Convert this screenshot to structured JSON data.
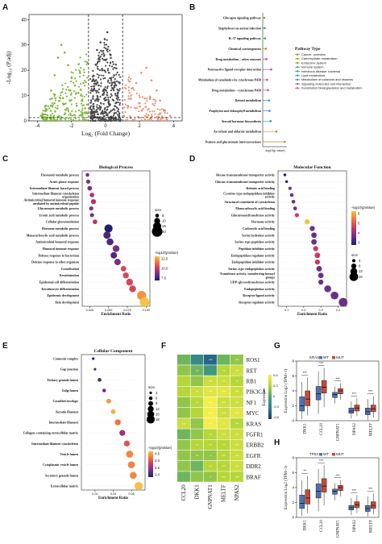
{
  "panel_letters": [
    "A",
    "B",
    "C",
    "D",
    "E",
    "F",
    "G",
    "H"
  ],
  "volcano": {
    "xlabel": "Log₂ (Fold Change)",
    "ylabel": "-Log₁₀ (P.adj)",
    "xticks": [
      "-4",
      "-2",
      "0",
      "2",
      "4"
    ],
    "yticks": [
      "0",
      "10",
      "20",
      "30",
      "40"
    ],
    "colors": {
      "down": "#7fb83a",
      "ns": "#4a4a4a",
      "up": "#e3957a"
    }
  },
  "pathway_legend": {
    "title": "Pathway Type",
    "items": [
      {
        "label": "Cancer: overview",
        "color": "#c47c2a"
      },
      {
        "label": "Carbohydrate metabolism",
        "color": "#b5902a"
      },
      {
        "label": "Endocrine system",
        "color": "#8aa33a"
      },
      {
        "label": "Immune system",
        "color": "#4aa84a"
      },
      {
        "label": "Infectious disease: bacterial",
        "color": "#2aa88a"
      },
      {
        "label": "Lipid metabolism",
        "color": "#2a9fc0"
      },
      {
        "label": "Metabolism of cofactors and vitamins",
        "color": "#3a7fd0"
      },
      {
        "label": "Signaling molecules and interaction",
        "color": "#8a5ad0"
      },
      {
        "label": "Xenobiotics biodegradation and metabolism",
        "color": "#d04aa0"
      }
    ]
  },
  "chart_data": [
    {
      "panel": "A",
      "type": "scatter",
      "title": "",
      "xlabel": "Log2 (Fold Change)",
      "ylabel": "-Log10 (P.adj)",
      "xlim": [
        -4.5,
        4.5
      ],
      "ylim": [
        0,
        42
      ],
      "thresholds": {
        "x": [
          -1,
          1
        ],
        "y": 1.3
      },
      "series": [
        {
          "name": "down",
          "points": [
            [
              -3.8,
              2
            ],
            [
              -3.5,
              6
            ],
            [
              -3.2,
              12
            ],
            [
              -3,
              18
            ],
            [
              -2.8,
              25
            ],
            [
              -2.6,
              30
            ],
            [
              -2.4,
              27
            ],
            [
              -2.2,
              22
            ],
            [
              -2,
              17
            ],
            [
              -1.8,
              14
            ],
            [
              -1.6,
              11
            ],
            [
              -1.4,
              8
            ],
            [
              -1.2,
              5
            ],
            [
              -1.1,
              3
            ],
            [
              -2.5,
              9
            ],
            [
              -3,
              7
            ],
            [
              -1.5,
              19
            ],
            [
              -2.1,
              12
            ],
            [
              -1.3,
              15
            ],
            [
              -1.7,
              6
            ]
          ]
        },
        {
          "name": "ns",
          "points": [
            [
              -0.8,
              3
            ],
            [
              -0.6,
              8
            ],
            [
              -0.4,
              14
            ],
            [
              -0.2,
              20
            ],
            [
              0,
              24
            ],
            [
              0.2,
              19
            ],
            [
              0.4,
              13
            ],
            [
              0.6,
              7
            ],
            [
              0.8,
              2
            ],
            [
              -0.5,
              28
            ],
            [
              0.1,
              35
            ],
            [
              0.3,
              26
            ],
            [
              -0.3,
              31
            ],
            [
              0.5,
              18
            ],
            [
              0.7,
              10
            ],
            [
              -0.7,
              12
            ]
          ]
        },
        {
          "name": "up",
          "points": [
            [
              1.1,
              2
            ],
            [
              1.3,
              6
            ],
            [
              1.5,
              10
            ],
            [
              1.8,
              15
            ],
            [
              2.1,
              19
            ],
            [
              2.4,
              21
            ],
            [
              2.7,
              16
            ],
            [
              3,
              12
            ],
            [
              3.2,
              8
            ],
            [
              3.5,
              4
            ],
            [
              3.8,
              2
            ],
            [
              2,
              7
            ],
            [
              1.6,
              13
            ],
            [
              2.6,
              9
            ]
          ]
        }
      ]
    },
    {
      "panel": "B",
      "type": "lollipop",
      "xlabel": "-log10(p.value)",
      "categories": [
        "Glucagon signaling pathway",
        "Staphylococcus aureus infection",
        "IL-17 signaling pathway",
        "Chemical carcinogenesis",
        "Drug metabolism – other enzymes",
        "Neuroactive ligand–receptor interaction",
        "Metabolism of xenobiotics by cytochrome P450",
        "Drug metabolism – cytochrome P450",
        "Retinol metabolism",
        "Porphyrin and chlorophyll metabolism",
        "Steroid hormone biosynthesis",
        "Ascorbate and aldarate metabolism",
        "Pentose and glucuronate interconversions"
      ],
      "values": [
        1.35,
        1.38,
        1.42,
        1.5,
        1.55,
        2.0,
        1.62,
        1.7,
        1.8,
        1.85,
        1.95,
        2.5,
        3.3
      ],
      "types": [
        2,
        4,
        3,
        0,
        8,
        7,
        8,
        8,
        5,
        6,
        5,
        1,
        1
      ],
      "xlim": [
        1.2,
        3.5
      ]
    },
    {
      "panel": "C",
      "type": "bubble",
      "title": "Biological Process",
      "xlabel": "Enrichment Ratio",
      "xticks": [
        "0.025",
        "0.050",
        "0.075",
        "0.100"
      ],
      "xlim": [
        0.015,
        0.105
      ],
      "categories": [
        "Flavonoid metabolic process",
        "Acute–phase response",
        "Intermediate filament–based process",
        "Intermediate filament cytoskeleton organization",
        "Antimicrobial humoral immune response mediated by antimicrobial peptide",
        "Glucuronate metabolic process",
        "Uronic acid metabolic process",
        "Cellular glucuronidation",
        "Hormone metabolic process",
        "Monocarboxylic acid metabolic process",
        "Antimicrobial humoral response",
        "Humoral immune response",
        "Defense response to bacterium",
        "Defense response to other organism",
        "Cornification",
        "Keratinization",
        "Epidermal cell differentiation",
        "Keratinocyte differentiation",
        "Epidermis development",
        "Skin development"
      ],
      "x": [
        0.022,
        0.023,
        0.025,
        0.028,
        0.03,
        0.027,
        0.028,
        0.032,
        0.05,
        0.048,
        0.052,
        0.06,
        0.057,
        0.062,
        0.07,
        0.073,
        0.078,
        0.082,
        0.094,
        0.098
      ],
      "size": [
        5,
        6,
        7,
        7,
        8,
        6,
        6,
        7,
        15,
        13,
        12,
        12,
        11,
        11,
        9,
        10,
        12,
        12,
        17,
        18
      ],
      "color": [
        9,
        9,
        9,
        10,
        10,
        9,
        9,
        10,
        7,
        8,
        8,
        9,
        8,
        9,
        11,
        11,
        11,
        11,
        13,
        14
      ],
      "size_legend": {
        "title": "size",
        "values": [
          "5",
          "10",
          "15",
          "20"
        ]
      },
      "color_legend": {
        "title": "-log10(pValue)",
        "ticks": [
          "12.5",
          "10.0",
          "7.5"
        ]
      }
    },
    {
      "panel": "D",
      "type": "bubble",
      "title": "Molecular Function",
      "xlabel": "Enrichment Ratio",
      "xticks": [
        "0.1",
        "0.2",
        "0.3",
        "0.4"
      ],
      "xlim": [
        0.05,
        0.45
      ],
      "categories": [
        "Hexose transmembrane transporter activity",
        "Glucose transmembrane transporter activity",
        "Retinoic acid binding",
        "Cysteine–type endopeptidase inhibitor activity",
        "Structural constituent of cytoskeleton",
        "Monocarboxylic acid binding",
        "Glucuronosyltransferase activity",
        "Hormone activity",
        "Carboxylic acid binding",
        "Serine hydrolase activity",
        "Serine–type peptidase activity",
        "Peptidase inhibitor activity",
        "Endopeptidase regulator activity",
        "Endopeptidase inhibitor activity",
        "Serine–type endopeptidase activity",
        "Transferase activity, transferring hexosyl groups",
        "UDP–glycosyltransferase activity",
        "Endopeptidase activity",
        "Receptor ligand activity",
        "Receptor regulator activity"
      ],
      "x": [
        0.09,
        0.1,
        0.12,
        0.13,
        0.14,
        0.15,
        0.16,
        0.22,
        0.25,
        0.26,
        0.26,
        0.27,
        0.28,
        0.28,
        0.29,
        0.3,
        0.3,
        0.34,
        0.38,
        0.43
      ],
      "size": [
        3,
        3,
        4,
        5,
        5,
        5,
        6,
        8,
        8,
        9,
        9,
        8,
        9,
        8,
        9,
        9,
        8,
        12,
        14,
        16
      ],
      "color": [
        2,
        2,
        3,
        3,
        3,
        3,
        4,
        6,
        3,
        3,
        3,
        4,
        4,
        4,
        3,
        3,
        3,
        3,
        3,
        3
      ],
      "size_legend": {
        "title": "size",
        "values": [
          "4",
          "8",
          "12",
          "16"
        ]
      },
      "color_legend": {
        "title": "-log10(pValue)",
        "ticks": [
          "6",
          "5",
          "4",
          "3"
        ]
      }
    },
    {
      "panel": "E",
      "type": "bubble",
      "title": "Cellular Component",
      "xlabel": "Enrichment Ratio",
      "xticks": [
        "0.02",
        "0.04",
        "0.06"
      ],
      "xlim": [
        0.005,
        0.075
      ],
      "categories": [
        "Connexin complex",
        "Gap junction",
        "Tertiary granule lumen",
        "Golgi lumen",
        "Cornified envelope",
        "Keratin filament",
        "Intermediate filament",
        "Collagen–containing extracellular matrix",
        "Intermediate filament cytoskeleton",
        "Vesicle lumen",
        "Cytoplasmic vesicle lumen",
        "Secretory granule lumen",
        "Extracellular matrix"
      ],
      "x": [
        0.018,
        0.02,
        0.025,
        0.03,
        0.035,
        0.04,
        0.045,
        0.05,
        0.055,
        0.058,
        0.06,
        0.062,
        0.068
      ],
      "size": [
        3,
        3,
        6,
        6,
        9,
        9,
        12,
        12,
        12,
        15,
        15,
        15,
        18
      ],
      "color": [
        3.0,
        3.2,
        3.2,
        3.4,
        4.4,
        4.5,
        4.2,
        3.6,
        4.0,
        4.3,
        4.3,
        4.3,
        4.6
      ],
      "size_legend": {
        "title": "size",
        "values": [
          "3",
          "6",
          "9",
          "12",
          "15",
          "18"
        ]
      },
      "color_legend": {
        "title": "-log10(pValue)",
        "ticks": [
          "4.5",
          "4.0",
          "3.5",
          "3.0"
        ]
      }
    },
    {
      "panel": "F",
      "type": "heatmap",
      "rows": [
        "ROS1",
        "RET",
        "RB1",
        "PIK3CA",
        "NF1",
        "MYC",
        "KRAS",
        "FGFR1",
        "ERBB2",
        "EGFR",
        "DDR2",
        "BRAF"
      ],
      "columns": [
        "CCL20",
        "DKK1",
        "GNPNAT1",
        "MELTF",
        "NPAS2"
      ],
      "values": [
        [
          0.1,
          -0.2,
          -0.4,
          0.1,
          0.2
        ],
        [
          0.2,
          0.1,
          -0.1,
          0.3,
          0.4
        ],
        [
          0.3,
          0.2,
          0.4,
          0.4,
          0.3
        ],
        [
          0.3,
          0.4,
          0.5,
          0.5,
          0.4
        ],
        [
          0.2,
          0.3,
          0.6,
          0.4,
          0.4
        ],
        [
          0.2,
          0.3,
          0.6,
          0.4,
          0.5
        ],
        [
          0.4,
          0.2,
          0.7,
          0.5,
          0.3
        ],
        [
          0.1,
          0.2,
          0.3,
          0.4,
          0.4
        ],
        [
          0.2,
          0.3,
          0.3,
          0.3,
          0.4
        ],
        [
          0.2,
          0.2,
          0.2,
          0.3,
          0.4
        ],
        [
          0.2,
          0.1,
          0.3,
          0.3,
          0.4
        ],
        [
          0.1,
          0.2,
          0.2,
          0.3,
          0.3
        ]
      ],
      "stars": [
        [
          "",
          "",
          "***",
          "",
          "***"
        ],
        [
          "",
          "**",
          "",
          "**",
          "***"
        ],
        [
          "",
          "",
          "***",
          "**",
          "**"
        ],
        [
          "",
          "**",
          "***",
          "***",
          "***"
        ],
        [
          "",
          "**",
          "***",
          "***",
          "***"
        ],
        [
          "",
          "",
          "***",
          "***",
          "***"
        ],
        [
          "***",
          "",
          "***",
          "**",
          "***"
        ],
        [
          "",
          "",
          "**",
          "***",
          "***"
        ],
        [
          "",
          "**",
          "**",
          "**",
          "***"
        ],
        [
          "",
          "**",
          "*",
          "***",
          "***"
        ],
        [
          "",
          "",
          "**",
          "***",
          "***"
        ],
        [
          "",
          "",
          "*",
          "***",
          "***"
        ]
      ],
      "colorbar": {
        "title": "Expression",
        "ticks": [
          "0.6",
          "0.3",
          "0",
          "-0.3",
          "-0.6"
        ]
      }
    },
    {
      "panel": "G",
      "type": "box",
      "title": "KRAS",
      "ylabel": "Expression Log2 (TPM+1)",
      "legend": [
        "WT",
        "MUT"
      ],
      "categories": [
        "DKK1",
        "CCL20",
        "GNPNAT1",
        "NPAS2",
        "MELTF"
      ],
      "significance": [
        "***",
        "***",
        "***",
        "***",
        "***"
      ],
      "series": [
        {
          "name": "WT",
          "median": [
            2.0,
            3.6,
            3.5,
            1.3,
            1.2
          ],
          "q1": [
            1.3,
            2.8,
            3.1,
            1.0,
            0.8
          ],
          "q3": [
            3.2,
            4.6,
            3.8,
            1.7,
            1.7
          ],
          "min": [
            0.2,
            0.9,
            2.3,
            0.3,
            0.1
          ],
          "max": [
            5.2,
            6.6,
            4.6,
            2.6,
            2.9
          ]
        },
        {
          "name": "MUT",
          "median": [
            2.9,
            4.5,
            4.0,
            1.7,
            1.6
          ],
          "q1": [
            2.0,
            3.7,
            3.6,
            1.3,
            1.2
          ],
          "q3": [
            4.0,
            5.4,
            4.3,
            2.1,
            2.1
          ],
          "min": [
            0.7,
            1.8,
            2.8,
            0.6,
            0.4
          ],
          "max": [
            5.8,
            7.1,
            5.0,
            3.0,
            3.3
          ]
        }
      ],
      "ylim": [
        0,
        8
      ]
    },
    {
      "panel": "H",
      "type": "box",
      "title": "TP53",
      "ylabel": "Expression Log2 (TPM+1)",
      "legend": [
        "WT",
        "MUT"
      ],
      "categories": [
        "DKK1",
        "CCL20",
        "GNPNAT1",
        "NPAS2",
        "MELTF"
      ],
      "significance": [
        "**",
        "***",
        "***",
        "***",
        "***"
      ],
      "series": [
        {
          "name": "WT",
          "median": [
            1.9,
            3.5,
            3.5,
            1.3,
            1.2
          ],
          "q1": [
            1.2,
            2.6,
            3.1,
            1.0,
            0.8
          ],
          "q3": [
            3.0,
            4.5,
            3.8,
            1.6,
            1.6
          ],
          "min": [
            0.2,
            0.8,
            2.3,
            0.3,
            0.1
          ],
          "max": [
            5.0,
            6.5,
            4.6,
            2.6,
            2.8
          ]
        },
        {
          "name": "MUT",
          "median": [
            2.6,
            4.2,
            4.0,
            1.7,
            1.6
          ],
          "q1": [
            1.8,
            3.4,
            3.6,
            1.3,
            1.2
          ],
          "q3": [
            3.7,
            5.2,
            4.3,
            2.1,
            2.1
          ],
          "min": [
            0.6,
            1.6,
            2.8,
            0.6,
            0.4
          ],
          "max": [
            5.6,
            7.0,
            5.0,
            3.0,
            3.2
          ]
        }
      ],
      "ylim": [
        0,
        8
      ]
    }
  ]
}
